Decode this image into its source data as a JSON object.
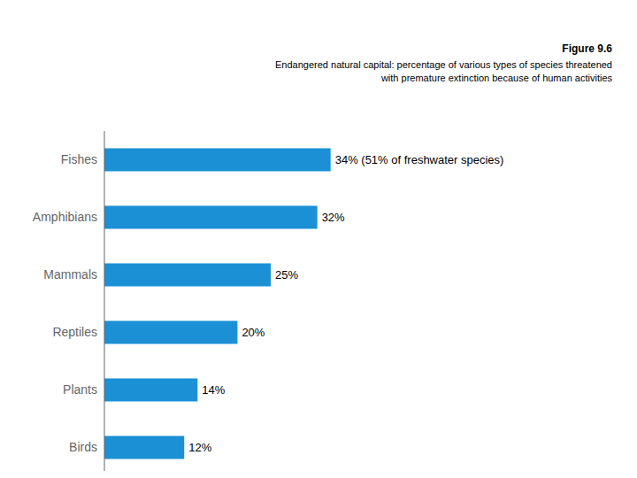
{
  "chart_data": {
    "type": "bar",
    "title": "Figure 9.6",
    "subtitle": [
      "Endangered natural capital: percentage of various types of species threatened",
      "with premature extinction because of human activities"
    ],
    "orientation": "horizontal",
    "categories": [
      "Fishes",
      "Amphibians",
      "Mammals",
      "Reptiles",
      "Plants",
      "Birds"
    ],
    "values": [
      34,
      32,
      25,
      20,
      14,
      12
    ],
    "value_labels": [
      "34% (51% of freshwater species)",
      "32%",
      "25%",
      "20%",
      "14%",
      "12%"
    ],
    "data_labels": true,
    "color": "#1b90d5",
    "xlim": [
      0,
      75
    ],
    "tick_labels": "y",
    "grid": false
  }
}
